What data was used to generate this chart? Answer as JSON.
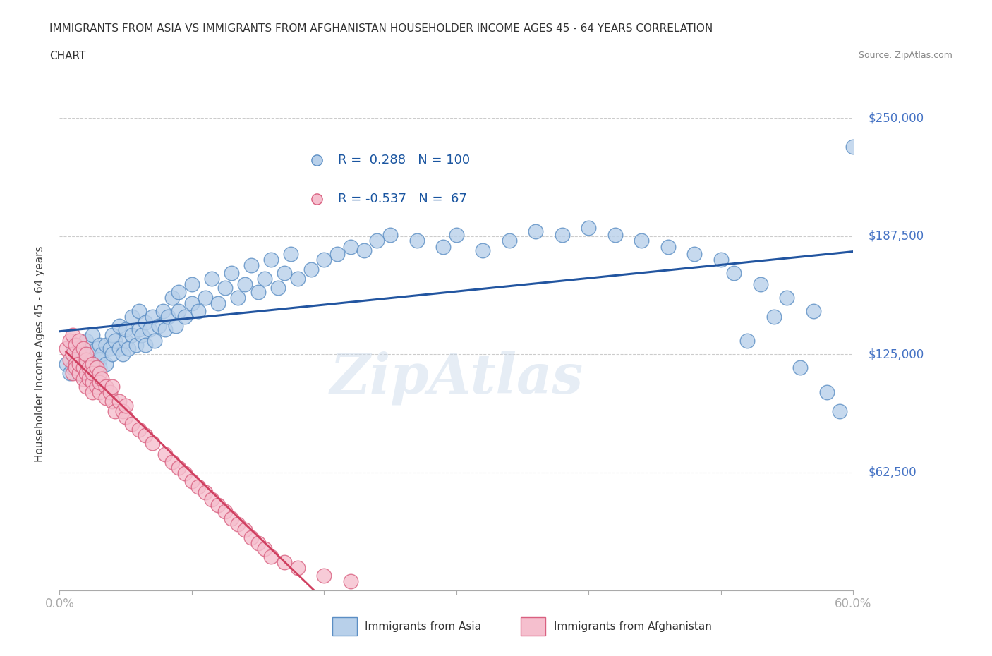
{
  "title_line1": "IMMIGRANTS FROM ASIA VS IMMIGRANTS FROM AFGHANISTAN HOUSEHOLDER INCOME AGES 45 - 64 YEARS CORRELATION",
  "title_line2": "CHART",
  "source": "Source: ZipAtlas.com",
  "ylabel": "Householder Income Ages 45 - 64 years",
  "xlim": [
    0.0,
    0.6
  ],
  "ylim": [
    0,
    250000
  ],
  "yticks": [
    0,
    62500,
    125000,
    187500,
    250000
  ],
  "ytick_labels": [
    "",
    "$62,500",
    "$125,000",
    "$187,500",
    "$250,000"
  ],
  "xticks": [
    0.0,
    0.1,
    0.2,
    0.3,
    0.4,
    0.5,
    0.6
  ],
  "asia_color": "#b8d0ea",
  "asia_edge_color": "#5b8ec4",
  "afghanistan_color": "#f5bfce",
  "afghanistan_edge_color": "#d96080",
  "trend_asia_color": "#2255a0",
  "trend_afghanistan_color": "#d04060",
  "R_asia": 0.288,
  "N_asia": 100,
  "R_afghanistan": -0.537,
  "N_afghanistan": 67,
  "asia_x": [
    0.005,
    0.008,
    0.01,
    0.01,
    0.01,
    0.012,
    0.015,
    0.015,
    0.018,
    0.02,
    0.02,
    0.022,
    0.025,
    0.025,
    0.025,
    0.028,
    0.03,
    0.03,
    0.03,
    0.032,
    0.035,
    0.035,
    0.038,
    0.04,
    0.04,
    0.042,
    0.045,
    0.045,
    0.048,
    0.05,
    0.05,
    0.052,
    0.055,
    0.055,
    0.058,
    0.06,
    0.06,
    0.062,
    0.065,
    0.065,
    0.068,
    0.07,
    0.072,
    0.075,
    0.078,
    0.08,
    0.082,
    0.085,
    0.088,
    0.09,
    0.09,
    0.095,
    0.1,
    0.1,
    0.105,
    0.11,
    0.115,
    0.12,
    0.125,
    0.13,
    0.135,
    0.14,
    0.145,
    0.15,
    0.155,
    0.16,
    0.165,
    0.17,
    0.175,
    0.18,
    0.19,
    0.2,
    0.21,
    0.22,
    0.23,
    0.24,
    0.25,
    0.27,
    0.29,
    0.3,
    0.32,
    0.34,
    0.36,
    0.38,
    0.4,
    0.42,
    0.44,
    0.46,
    0.48,
    0.5,
    0.51,
    0.53,
    0.55,
    0.57,
    0.58,
    0.59,
    0.54,
    0.56,
    0.52,
    0.6
  ],
  "asia_y": [
    120000,
    115000,
    125000,
    130000,
    118000,
    122000,
    128000,
    115000,
    125000,
    120000,
    132000,
    118000,
    125000,
    135000,
    115000,
    128000,
    122000,
    130000,
    118000,
    125000,
    130000,
    120000,
    128000,
    135000,
    125000,
    132000,
    128000,
    140000,
    125000,
    132000,
    138000,
    128000,
    135000,
    145000,
    130000,
    138000,
    148000,
    135000,
    142000,
    130000,
    138000,
    145000,
    132000,
    140000,
    148000,
    138000,
    145000,
    155000,
    140000,
    148000,
    158000,
    145000,
    152000,
    162000,
    148000,
    155000,
    165000,
    152000,
    160000,
    168000,
    155000,
    162000,
    172000,
    158000,
    165000,
    175000,
    160000,
    168000,
    178000,
    165000,
    170000,
    175000,
    178000,
    182000,
    180000,
    185000,
    188000,
    185000,
    182000,
    188000,
    180000,
    185000,
    190000,
    188000,
    192000,
    188000,
    185000,
    182000,
    178000,
    175000,
    168000,
    162000,
    155000,
    148000,
    105000,
    95000,
    145000,
    118000,
    132000,
    235000
  ],
  "afghanistan_x": [
    0.005,
    0.008,
    0.008,
    0.01,
    0.01,
    0.01,
    0.012,
    0.012,
    0.012,
    0.015,
    0.015,
    0.015,
    0.015,
    0.018,
    0.018,
    0.018,
    0.02,
    0.02,
    0.02,
    0.02,
    0.022,
    0.022,
    0.025,
    0.025,
    0.025,
    0.025,
    0.028,
    0.028,
    0.03,
    0.03,
    0.03,
    0.032,
    0.035,
    0.035,
    0.038,
    0.04,
    0.04,
    0.042,
    0.045,
    0.048,
    0.05,
    0.05,
    0.055,
    0.06,
    0.065,
    0.07,
    0.08,
    0.085,
    0.09,
    0.095,
    0.1,
    0.105,
    0.11,
    0.115,
    0.12,
    0.125,
    0.13,
    0.135,
    0.14,
    0.145,
    0.15,
    0.155,
    0.16,
    0.17,
    0.18,
    0.2,
    0.22
  ],
  "afghanistan_y": [
    128000,
    122000,
    132000,
    125000,
    115000,
    135000,
    120000,
    130000,
    118000,
    125000,
    132000,
    115000,
    120000,
    118000,
    128000,
    112000,
    122000,
    115000,
    125000,
    108000,
    118000,
    112000,
    120000,
    110000,
    115000,
    105000,
    118000,
    108000,
    115000,
    105000,
    110000,
    112000,
    108000,
    102000,
    105000,
    100000,
    108000,
    95000,
    100000,
    95000,
    92000,
    98000,
    88000,
    85000,
    82000,
    78000,
    72000,
    68000,
    65000,
    62000,
    58000,
    55000,
    52000,
    48000,
    45000,
    42000,
    38000,
    35000,
    32000,
    28000,
    25000,
    22000,
    18000,
    15000,
    12000,
    8000,
    5000
  ],
  "watermark": "ZipAtlas",
  "background_color": "#ffffff",
  "grid_color": "#cccccc"
}
